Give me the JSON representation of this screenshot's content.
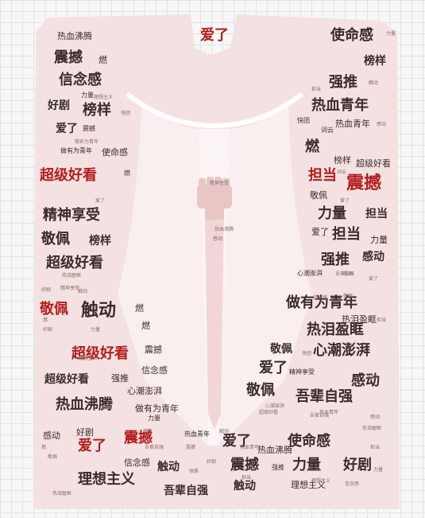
{
  "colors": {
    "silhouette": "#f4e2e2",
    "silhouette_light": "#f8eeee",
    "red": "#b61c1c",
    "dark": "#3b2b2b",
    "pink": "#c96060"
  },
  "icon": "raised-fist-icon",
  "words": [
    "热血沸腾",
    "震撼",
    "燃",
    "信念感",
    "力量",
    "理想主义",
    "好剧",
    "榜样",
    "快团",
    "爱了",
    "震撼",
    "做有为青年",
    "使命感",
    "超级好看",
    "燃",
    "精神享受",
    "敬佩",
    "榜样",
    "超级好看",
    "好剧",
    "精神享受",
    "敬佩",
    "触动",
    "燃",
    "燃",
    "燃",
    "超级好看",
    "震撼",
    "超级好看",
    "强推",
    "信念感",
    "心潮澎湃",
    "热血沸腾",
    "做有为青年",
    "力量",
    "感动",
    "好剧",
    "爱了",
    "震撼",
    "热血青年",
    "信念感",
    "触动",
    "理想主义",
    "吾辈自强",
    "热泪盈眶",
    "爱了",
    "使命感",
    "力量",
    "榜样",
    "强推",
    "担当",
    "触动",
    "热血青年",
    "快团",
    "词云",
    "热血青年",
    "感动",
    "燃",
    "榜样",
    "超级好看",
    "担当",
    "震撼",
    "敬佩",
    "力量",
    "担当",
    "爱了",
    "担当",
    "力量",
    "强推",
    "感动",
    "心潮澎湃",
    "吾辈自强",
    "做有为青年",
    "热泪盈眶",
    "担当",
    "热泪盈眶",
    "敬佩",
    "心潮澎湃",
    "爱了",
    "精神享受",
    "敬佩",
    "感动",
    "吾辈自强",
    "超级好看",
    "爱了",
    "热血沸腾",
    "使命感",
    "震撼",
    "强推",
    "力量",
    "好剧",
    "触动",
    "理想主义",
    "信念感",
    "感动",
    "触动",
    "热血青年",
    "理想主义",
    "热泪盈眶",
    "担当",
    "力量",
    "好剧",
    "感动",
    "词云",
    "爱了",
    "震撼",
    "敬佩",
    "做有为青年",
    "榜样",
    "吾辈自强",
    "心潮澎湃",
    "强推",
    "热血沸腾",
    "感动",
    "触动",
    "好剧",
    "敬佩",
    "爱了",
    "热血青年",
    "吾辈自强",
    "爱了",
    "力量",
    "理想主义",
    "信念感",
    "热泪盈眶",
    "精神享受",
    "快团",
    "燃",
    "担当",
    "感动",
    "敬佩",
    "心潮澎湃"
  ]
}
